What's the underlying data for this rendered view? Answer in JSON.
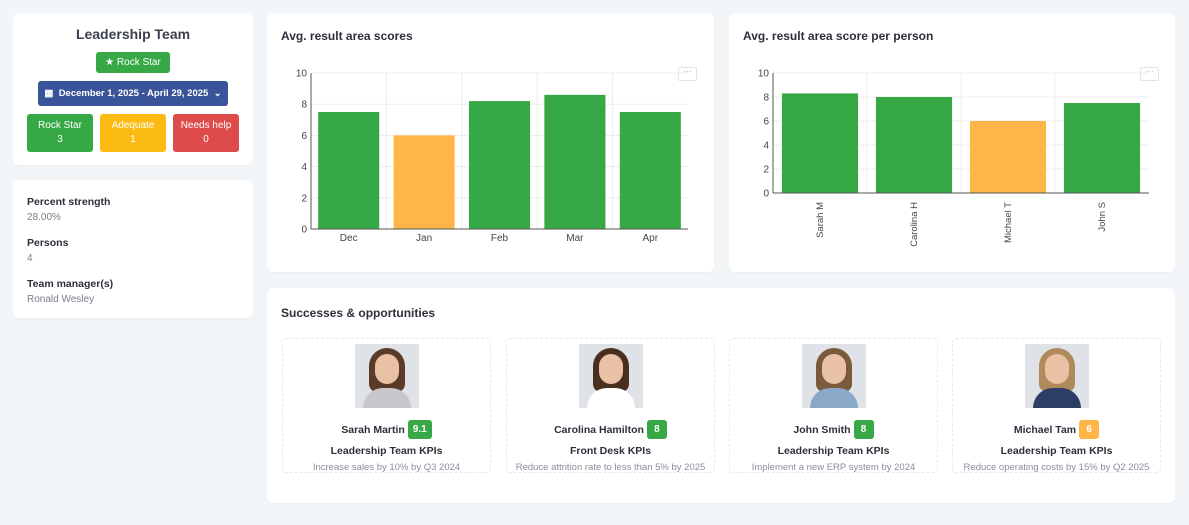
{
  "team": {
    "title": "Leadership Team",
    "status_label": "Rock Star",
    "date_range": "December 1, 2025 - April 29, 2025",
    "stats": [
      {
        "label": "Rock Star",
        "count": "3",
        "color": "#37a846"
      },
      {
        "label": "Adequate",
        "count": "1",
        "color": "#fcbb13"
      },
      {
        "label": "Needs help",
        "count": "0",
        "color": "#dd4b4b"
      }
    ]
  },
  "info": [
    {
      "label": "Percent strength",
      "value": "28.00%"
    },
    {
      "label": "Persons",
      "value": "4"
    },
    {
      "label": "Team manager(s)",
      "value": "Ronald Wesley"
    }
  ],
  "colors": {
    "green": "#37a846",
    "orange": "#ffb547"
  },
  "chart_data": [
    {
      "type": "bar",
      "title": "Avg. result area scores",
      "categories": [
        "Dec",
        "Jan",
        "Feb",
        "Mar",
        "Apr"
      ],
      "values": [
        7.5,
        6.0,
        8.2,
        8.6,
        7.5
      ],
      "bar_colors": [
        "#37a846",
        "#ffb547",
        "#37a846",
        "#37a846",
        "#37a846"
      ],
      "ylim": [
        0,
        10
      ],
      "yticks": [
        0,
        2,
        4,
        6,
        8,
        10
      ],
      "grid": true,
      "menu_label": "···"
    },
    {
      "type": "bar",
      "title": "Avg. result area score per person",
      "categories": [
        "Sarah M",
        "Carolina H",
        "Michael T",
        "John S"
      ],
      "values": [
        8.3,
        8.0,
        6.0,
        7.5
      ],
      "bar_colors": [
        "#37a846",
        "#37a846",
        "#ffb547",
        "#37a846"
      ],
      "ylim": [
        0,
        10
      ],
      "yticks": [
        0,
        2,
        4,
        6,
        8,
        10
      ],
      "grid": true,
      "rotated_labels": true,
      "menu_label": "···"
    }
  ],
  "successes": {
    "title": "Successes & opportunities",
    "people": [
      {
        "name": "Sarah Martin",
        "score": "9.1",
        "score_color": "#37a846",
        "kpi": "Leadership Team KPIs",
        "goal": "Increase sales by 10% by Q3 2024",
        "hair": "#5a3a28",
        "shirt": "#c8c8cc"
      },
      {
        "name": "Carolina Hamilton",
        "score": "8",
        "score_color": "#37a846",
        "kpi": "Front Desk KPIs",
        "goal": "Reduce attrition rate to less than 5% by 2025",
        "hair": "#4a2e20",
        "shirt": "#ffffff"
      },
      {
        "name": "John Smith",
        "score": "8",
        "score_color": "#37a846",
        "kpi": "Leadership Team KPIs",
        "goal": "Implement a new ERP system by 2024",
        "hair": "#7a5a3a",
        "shirt": "#8aa8c8"
      },
      {
        "name": "Michael Tam",
        "score": "6",
        "score_color": "#ffb547",
        "kpi": "Leadership Team KPIs",
        "goal": "Reduce operating costs by 15% by Q2 2025",
        "hair": "#b08a5a",
        "shirt": "#2c3e66"
      }
    ]
  }
}
